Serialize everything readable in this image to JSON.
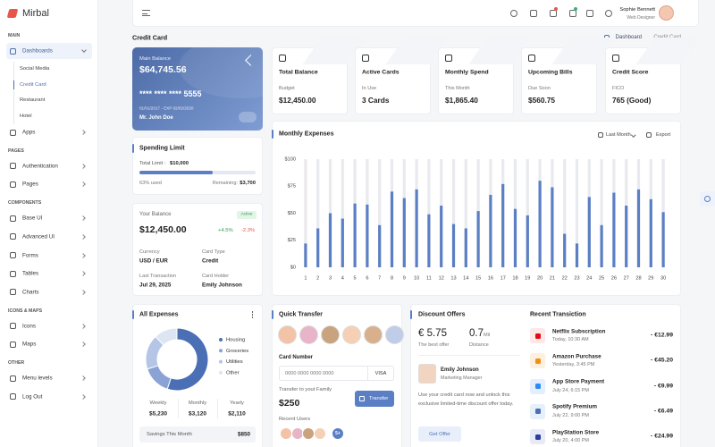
{
  "sidebar": {
    "brand": "Mirbal",
    "sections": [
      {
        "label": "MAIN",
        "items": [
          {
            "label": "Dashboards",
            "children": [
              "Social Media",
              "Credit Card",
              "Restaurant",
              "Hotel"
            ]
          },
          {
            "label": "Apps"
          }
        ]
      },
      {
        "label": "PAGES",
        "items": [
          {
            "label": "Authentication"
          },
          {
            "label": "Pages"
          }
        ]
      },
      {
        "label": "COMPONENTS",
        "items": [
          {
            "label": "Base UI"
          },
          {
            "label": "Advanced UI"
          },
          {
            "label": "Forms"
          },
          {
            "label": "Tables"
          },
          {
            "label": "Charts"
          }
        ]
      },
      {
        "label": "ICONS & MAPS",
        "items": [
          {
            "label": "Icons"
          },
          {
            "label": "Maps"
          }
        ]
      },
      {
        "label": "OTHER",
        "items": [
          {
            "label": "Menu levels"
          },
          {
            "label": "Log Out"
          }
        ]
      }
    ]
  },
  "header": {
    "user_name": "Sophie Bennett",
    "user_role": "Web Designer"
  },
  "page": {
    "title": "Credit Card",
    "breadcrumb": [
      "Dashboard",
      "Credit Card"
    ]
  },
  "card": {
    "label": "Main Balance",
    "balance": "$64,745.56",
    "number": "**** **** **** 5555",
    "validity": "01/01/2017 - EXP 02/02/2020",
    "holder": "Mr. John Doe"
  },
  "stats": [
    {
      "title": "Total Balance",
      "label": "Budget",
      "value": "$12,450.00"
    },
    {
      "title": "Active Cards",
      "label": "In Use",
      "value": "3 Cards"
    },
    {
      "title": "Monthly Spend",
      "label": "This Month",
      "value": "$1,865.40"
    },
    {
      "title": "Upcoming Bills",
      "label": "Due Soon",
      "value": "$560.75"
    },
    {
      "title": "Credit Score",
      "label": "FICO",
      "value": "765 (Good)"
    }
  ],
  "spending_limit": {
    "title": "Spending Limit",
    "limit_label": "Total Limit :",
    "limit_value": "$10,000",
    "used_percent": 63,
    "used_label": "63% used",
    "remaining_label": "Remaining:",
    "remaining_value": "$3,700"
  },
  "balance": {
    "title": "Your Balance",
    "status": "Active",
    "amount": "$12,450.00",
    "change_up": "+4.5%",
    "change_down": "-2.3%",
    "details": [
      {
        "label": "Currency",
        "value": "USD / EUR"
      },
      {
        "label": "Card Type",
        "value": "Credit"
      },
      {
        "label": "Last Transaction",
        "value": "Jul 29, 2025"
      },
      {
        "label": "Card Holder",
        "value": "Emily Johnson"
      }
    ]
  },
  "chart_data": [
    {
      "type": "bar",
      "title": "Monthly Expenses",
      "controls": [
        "Last Month",
        "Export"
      ],
      "categories": [
        1,
        2,
        3,
        4,
        5,
        6,
        7,
        8,
        9,
        10,
        11,
        12,
        13,
        14,
        15,
        16,
        17,
        18,
        19,
        20,
        21,
        22,
        23,
        24,
        25,
        26,
        27,
        28,
        29,
        30
      ],
      "values": [
        22,
        36,
        50,
        45,
        59,
        58,
        39,
        70,
        64,
        72,
        49,
        57,
        40,
        36,
        52,
        67,
        77,
        54,
        48,
        80,
        74,
        31,
        22,
        65,
        39,
        69,
        57,
        72,
        63,
        51
      ],
      "color": "#5b7fc4",
      "track_color": "#e9eaee",
      "ylim": [
        0,
        100
      ],
      "yticks": [
        {
          "value": 0,
          "label": "$0"
        },
        {
          "value": 25,
          "label": "$25"
        },
        {
          "value": 50,
          "label": "$50"
        },
        {
          "value": 75,
          "label": "$75"
        },
        {
          "value": 100,
          "label": "$100"
        }
      ]
    },
    {
      "type": "donut",
      "title": "All Expenses",
      "categories": [
        "Housing",
        "Groceries",
        "Utilities",
        "Other"
      ],
      "values": [
        55,
        15,
        18,
        12
      ],
      "colors": [
        "#4a6fb5",
        "#8aa3d4",
        "#b5c5e6",
        "#dde4f2"
      ]
    }
  ],
  "expense_summary": {
    "periods": [
      {
        "label": "Weekly",
        "value": "$5,230"
      },
      {
        "label": "Monthly",
        "value": "$3,120"
      },
      {
        "label": "Yearly",
        "value": "$2,110"
      }
    ],
    "savings_label": "Savings This Month",
    "savings_value": "$850"
  },
  "quick_transfer": {
    "title": "Quick Transfer",
    "card_label": "Card Number",
    "card_placeholder": "0000 0000 0000 0000",
    "card_brand": "VISA",
    "family_label": "Transfer to yout Family",
    "amount": "$250",
    "button": "Transfer",
    "recent_label": "Recent Users",
    "more": "5+"
  },
  "discount": {
    "title": "Discount Offers",
    "offer_value": "€ 5.75",
    "offer_label": "The best offer",
    "distance_value": "0.7",
    "distance_unit": "Mil",
    "distance_label": "Distance",
    "person_name": "Emily Johnson",
    "person_role": "Marketing Manager",
    "text": "Use your credit card now and unlock this exclusive limited-time discount offer today.",
    "button": "Get Offer"
  },
  "transactions": {
    "title": "Recent Transiction",
    "items": [
      {
        "name": "Netflix Subscription",
        "date": "Today, 10:30 AM",
        "amount": "- €12.99"
      },
      {
        "name": "Amazon Purchase",
        "date": "Yesterday, 3:45 PM",
        "amount": "- €45.20"
      },
      {
        "name": "App Store Payment",
        "date": "July 24, 6:15 PM",
        "amount": "- €9.99"
      },
      {
        "name": "Spotify Premium",
        "date": "July 22, 9:00 PM",
        "amount": "- €6.49"
      },
      {
        "name": "PlayStation Store",
        "date": "July 20, 4:00 PM",
        "amount": "- €24.99"
      }
    ]
  }
}
